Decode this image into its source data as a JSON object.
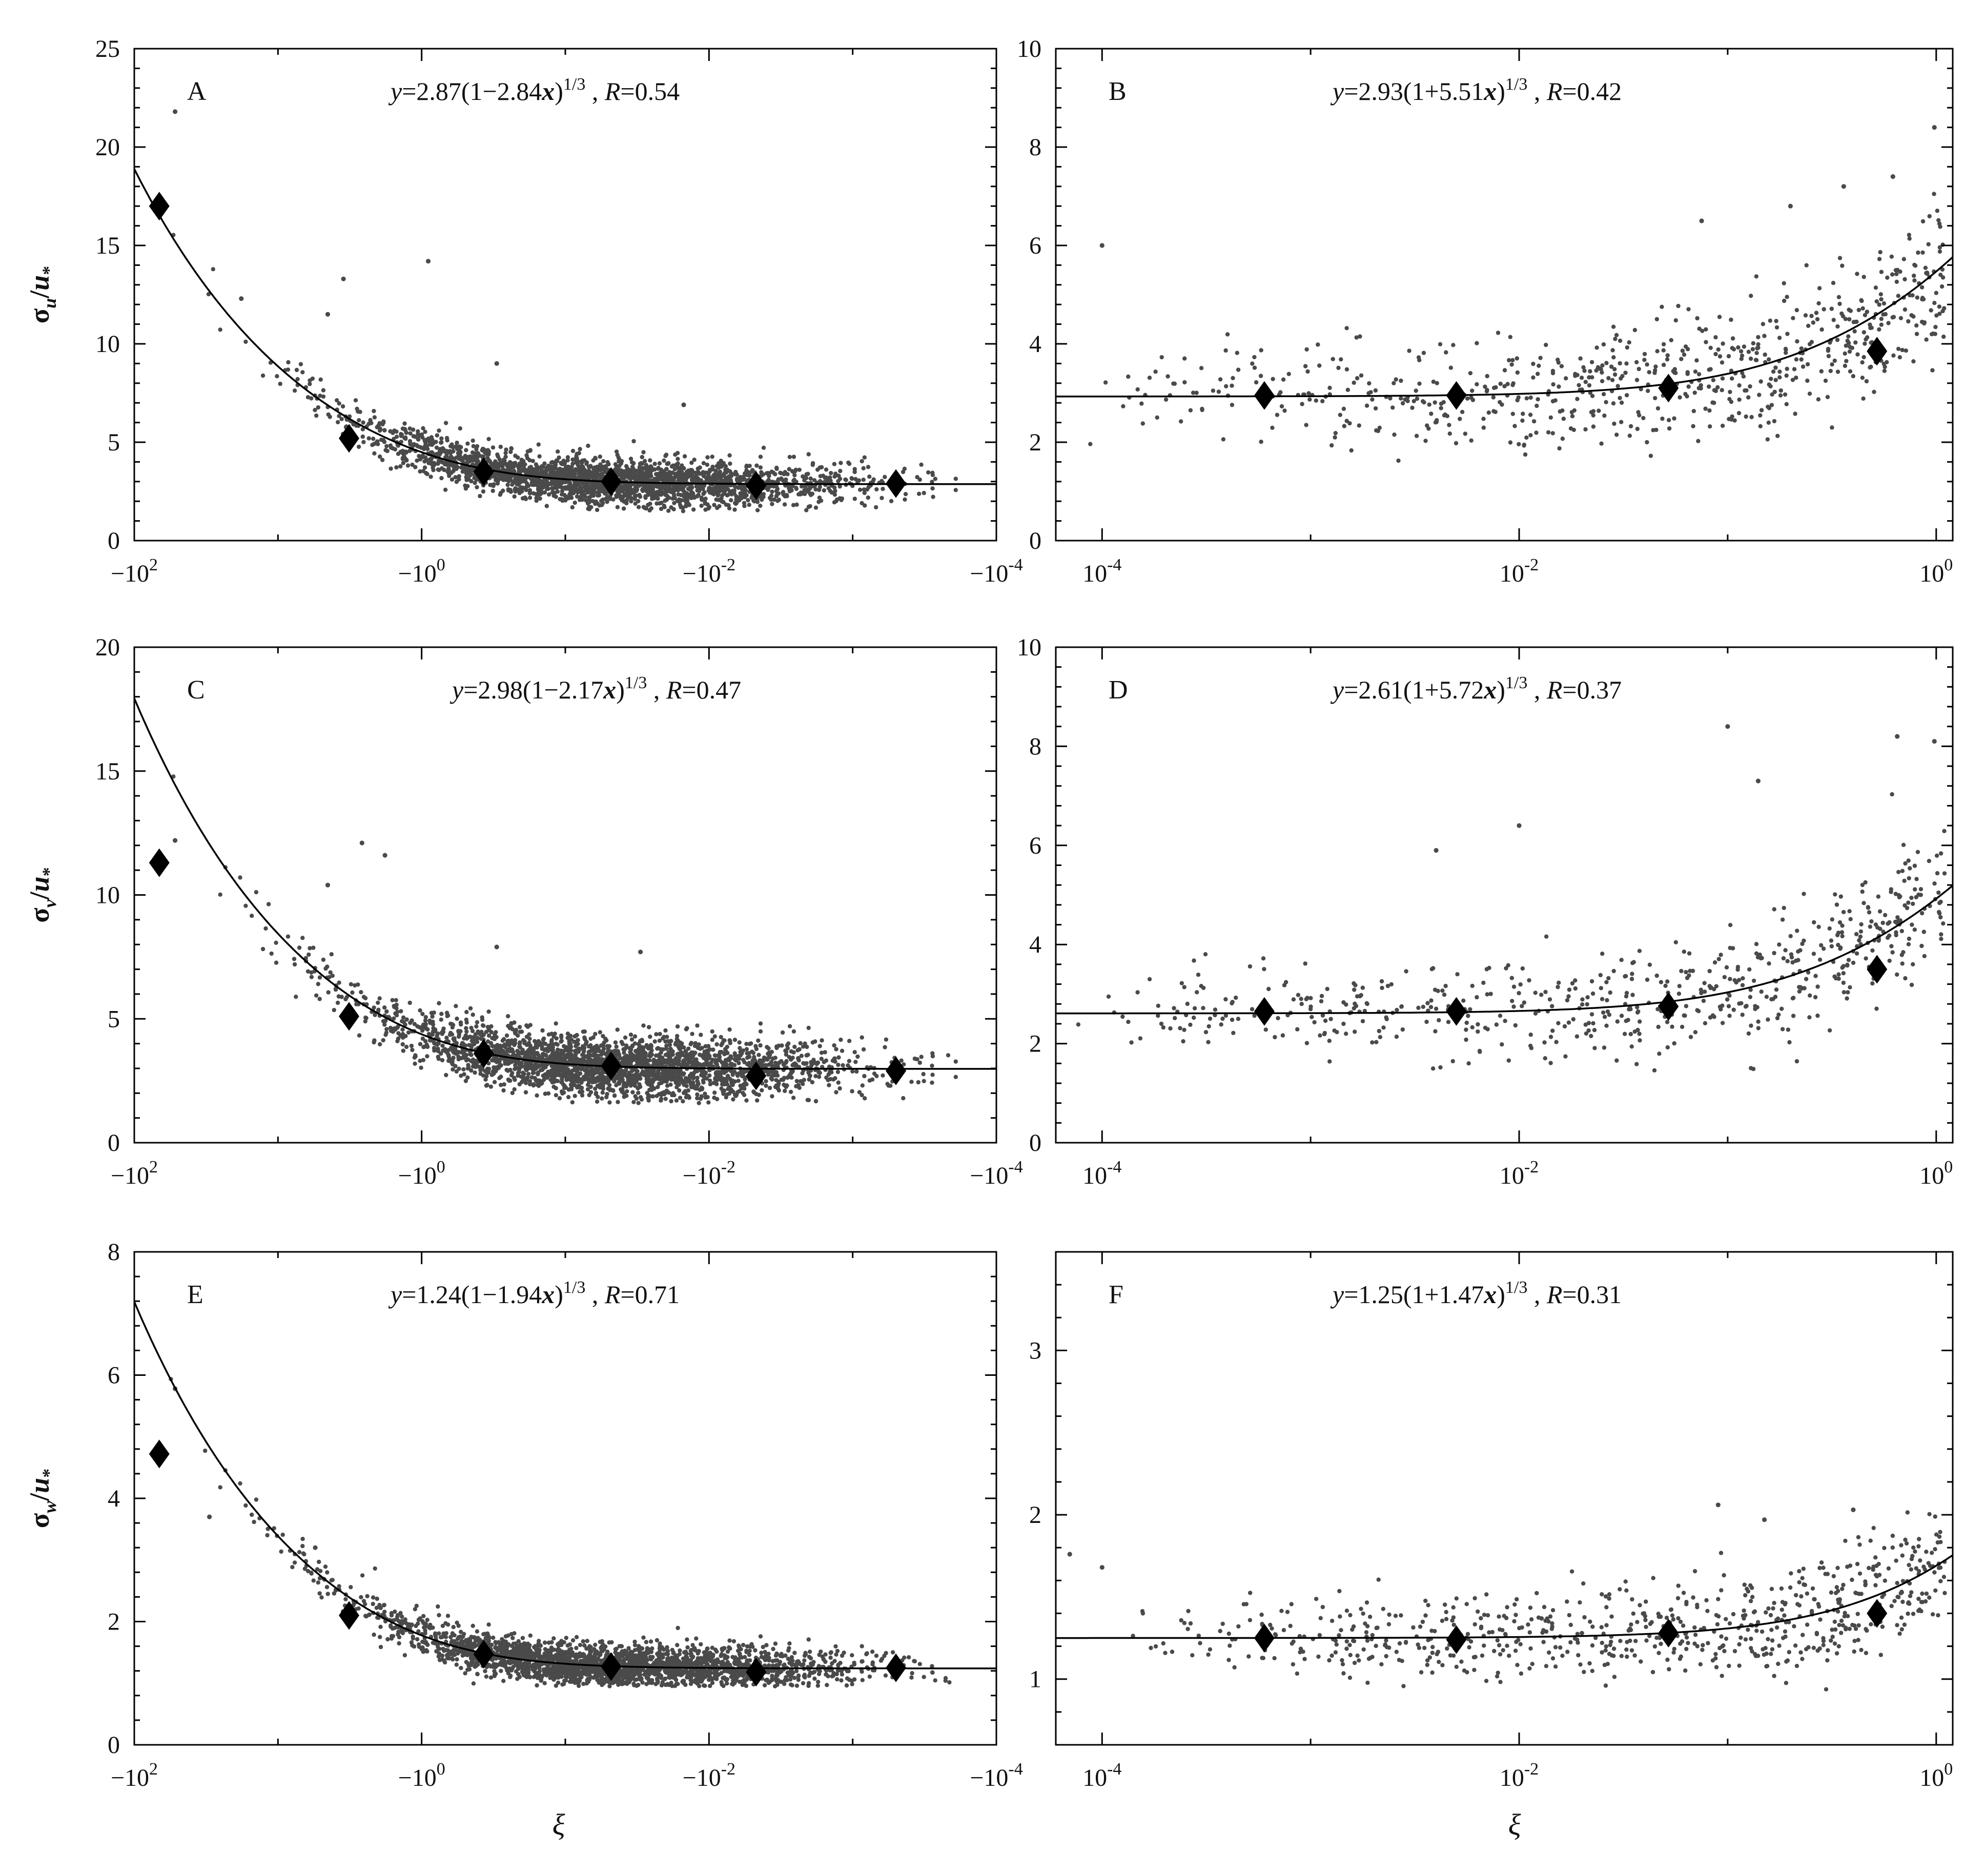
{
  "figure": {
    "ylabels": [
      {
        "sym": "σ",
        "sub": "u",
        "slash": "/",
        "u": "u",
        "star": "*"
      },
      {
        "sym": "σ",
        "sub": "v",
        "slash": "/",
        "u": "u",
        "star": "*"
      },
      {
        "sym": "σ",
        "sub": "w",
        "slash": "/",
        "u": "u",
        "star": "*"
      }
    ],
    "xlabel_left": "ξ",
    "xlabel_right": "ξ"
  },
  "chart_data": [
    {
      "id": "A",
      "type": "scatter",
      "side": "unstable",
      "panel_label": "A",
      "equation": {
        "y": "y",
        "a": "=2.87(1−2.84",
        "x": "x",
        "b": ")",
        "exp": "1/3",
        "c": " , ",
        "R": "R",
        "d": "=0.54"
      },
      "fit": {
        "a": 2.87,
        "b": -2.84
      },
      "xlim": [
        100,
        0.0001
      ],
      "xlog": true,
      "xneg": true,
      "ylim": [
        0,
        25
      ],
      "yticks": [
        0,
        5,
        10,
        15,
        20,
        25
      ],
      "xticks": [
        {
          "v": 100,
          "base": "−10",
          "exp": "2"
        },
        {
          "v": 1,
          "base": "−10",
          "exp": "0"
        },
        {
          "v": 0.01,
          "base": "−10",
          "exp": "-2"
        },
        {
          "v": 0.0001,
          "base": "−10",
          "exp": "-4"
        }
      ],
      "bin_means": [
        [
          -67,
          17.0
        ],
        [
          -3.2,
          5.2
        ],
        [
          -0.37,
          3.5
        ],
        [
          -0.048,
          3.0
        ],
        [
          -0.0047,
          2.8
        ],
        [
          -0.0005,
          2.9
        ]
      ],
      "scatter": {
        "count": 2600,
        "xrange": [
          -80,
          -0.00018
        ],
        "center": -0.05,
        "spread_log": 0.85,
        "sigma": 0.55,
        "clipmin": 1.5
      },
      "outliers": [
        [
          -52,
          21.8
        ],
        [
          -4.5,
          11.5
        ],
        [
          -3.5,
          13.3
        ],
        [
          -0.9,
          14.2
        ],
        [
          -18,
          12.3
        ],
        [
          -0.3,
          9.0
        ],
        [
          -0.015,
          6.9
        ]
      ]
    },
    {
      "id": "B",
      "type": "scatter",
      "side": "stable",
      "panel_label": "B",
      "equation": {
        "y": "y",
        "a": "=2.93(1+5.51",
        "x": "x",
        "b": ")",
        "exp": "1/3",
        "c": " , ",
        "R": "R",
        "d": "=0.42"
      },
      "fit": {
        "a": 2.93,
        "b": 5.51
      },
      "xlim": [
        6e-05,
        1.2
      ],
      "xlog": true,
      "xneg": false,
      "ylim": [
        0,
        10
      ],
      "yticks": [
        0,
        2,
        4,
        6,
        8,
        10
      ],
      "xticks": [
        {
          "v": 0.0001,
          "base": "10",
          "exp": "-4"
        },
        {
          "v": 0.01,
          "base": "10",
          "exp": "-2"
        },
        {
          "v": 1,
          "base": "10",
          "exp": "0"
        }
      ],
      "bin_means": [
        [
          0.0006,
          2.95
        ],
        [
          0.005,
          2.95
        ],
        [
          0.052,
          3.1
        ],
        [
          0.52,
          3.85
        ]
      ],
      "scatter": {
        "count": 720,
        "xrange": [
          7e-05,
          1.1
        ],
        "center": 0.02,
        "spread_log": 1.0,
        "sigma": 0.7,
        "clipmin": 1.2
      },
      "outliers": [
        [
          0.0001,
          6.0
        ],
        [
          0.36,
          7.2
        ],
        [
          0.62,
          7.4
        ],
        [
          0.98,
          8.4
        ],
        [
          0.2,
          6.8
        ],
        [
          0.075,
          6.5
        ]
      ]
    },
    {
      "id": "C",
      "type": "scatter",
      "side": "unstable",
      "panel_label": "C",
      "equation": {
        "y": "y",
        "a": "=2.98(1−2.17",
        "x": "x",
        "b": ")",
        "exp": "1/3",
        "c": " , ",
        "R": "R",
        "d": "=0.47"
      },
      "fit": {
        "a": 2.98,
        "b": -2.17
      },
      "xlim": [
        100,
        0.0001
      ],
      "xlog": true,
      "xneg": true,
      "ylim": [
        0,
        20
      ],
      "yticks": [
        0,
        5,
        10,
        15,
        20
      ],
      "xticks": [
        {
          "v": 100,
          "base": "−10",
          "exp": "2"
        },
        {
          "v": 1,
          "base": "−10",
          "exp": "0"
        },
        {
          "v": 0.01,
          "base": "−10",
          "exp": "-2"
        },
        {
          "v": 0.0001,
          "base": "−10",
          "exp": "-4"
        }
      ],
      "bin_means": [
        [
          -67,
          11.3
        ],
        [
          -3.2,
          5.1
        ],
        [
          -0.37,
          3.6
        ],
        [
          -0.048,
          3.1
        ],
        [
          -0.0047,
          2.7
        ],
        [
          -0.0005,
          2.9
        ]
      ],
      "scatter": {
        "count": 2600,
        "xrange": [
          -80,
          -0.00018
        ],
        "center": -0.05,
        "spread_log": 0.85,
        "sigma": 0.6,
        "clipmin": 1.6
      },
      "outliers": [
        [
          -52,
          12.2
        ],
        [
          -4.5,
          10.4
        ],
        [
          -2.6,
          12.1
        ],
        [
          -1.8,
          11.6
        ],
        [
          -0.3,
          7.9
        ],
        [
          -0.03,
          7.7
        ]
      ]
    },
    {
      "id": "D",
      "type": "scatter",
      "side": "stable",
      "panel_label": "D",
      "equation": {
        "y": "y",
        "a": "=2.61(1+5.72",
        "x": "x",
        "b": ")",
        "exp": "1/3",
        "c": " , ",
        "R": "R",
        "d": "=0.37"
      },
      "fit": {
        "a": 2.61,
        "b": 5.72
      },
      "xlim": [
        6e-05,
        1.2
      ],
      "xlog": true,
      "xneg": false,
      "ylim": [
        0,
        10
      ],
      "yticks": [
        0,
        2,
        4,
        6,
        8,
        10
      ],
      "xticks": [
        {
          "v": 0.0001,
          "base": "10",
          "exp": "-4"
        },
        {
          "v": 0.01,
          "base": "10",
          "exp": "-2"
        },
        {
          "v": 1,
          "base": "10",
          "exp": "0"
        }
      ],
      "bin_means": [
        [
          0.0006,
          2.65
        ],
        [
          0.005,
          2.65
        ],
        [
          0.052,
          2.75
        ],
        [
          0.52,
          3.5
        ]
      ],
      "scatter": {
        "count": 620,
        "xrange": [
          7e-05,
          1.1
        ],
        "center": 0.02,
        "spread_log": 1.0,
        "sigma": 0.65,
        "clipmin": 1.4
      },
      "outliers": [
        [
          0.1,
          8.4
        ],
        [
          0.65,
          8.2
        ],
        [
          0.98,
          8.1
        ],
        [
          0.01,
          6.4
        ],
        [
          0.14,
          7.3
        ],
        [
          0.004,
          5.9
        ]
      ]
    },
    {
      "id": "E",
      "type": "scatter",
      "side": "unstable",
      "panel_label": "E",
      "equation": {
        "y": "y",
        "a": "=1.24(1−1.94",
        "x": "x",
        "b": ")",
        "exp": "1/3",
        "c": " , ",
        "R": "R",
        "d": "=0.71"
      },
      "fit": {
        "a": 1.24,
        "b": -1.94
      },
      "xlim": [
        100,
        0.0001
      ],
      "xlog": true,
      "xneg": true,
      "ylim": [
        0,
        8
      ],
      "yticks": [
        0,
        2,
        4,
        6,
        8
      ],
      "xticks": [
        {
          "v": 100,
          "base": "−10",
          "exp": "2"
        },
        {
          "v": 1,
          "base": "−10",
          "exp": "0"
        },
        {
          "v": 0.01,
          "base": "−10",
          "exp": "-2"
        },
        {
          "v": 0.0001,
          "base": "−10",
          "exp": "-4"
        }
      ],
      "bin_means": [
        [
          -67,
          4.72
        ],
        [
          -3.2,
          2.1
        ],
        [
          -0.37,
          1.47
        ],
        [
          -0.048,
          1.27
        ],
        [
          -0.0047,
          1.18
        ],
        [
          -0.0005,
          1.25
        ]
      ],
      "scatter": {
        "count": 2600,
        "xrange": [
          -80,
          -0.00018
        ],
        "center": -0.05,
        "spread_log": 0.85,
        "sigma": 0.17,
        "clipmin": 0.95
      },
      "outliers": [
        [
          -52,
          5.78
        ],
        [
          -30,
          3.7
        ],
        [
          -5.5,
          3.2
        ]
      ]
    },
    {
      "id": "F",
      "type": "scatter",
      "side": "stable",
      "panel_label": "F",
      "equation": {
        "y": "y",
        "a": "=1.25(1+1.47",
        "x": "x",
        "b": ")",
        "exp": "1/3",
        "c": " , ",
        "R": "R",
        "d": "=0.31"
      },
      "fit": {
        "a": 1.25,
        "b": 1.47
      },
      "xlim": [
        6e-05,
        1.2
      ],
      "xlog": true,
      "xneg": false,
      "ylim": [
        0.6,
        3.6
      ],
      "yticks": [
        1,
        2,
        3
      ],
      "xticks": [
        {
          "v": 0.0001,
          "base": "10",
          "exp": "-4"
        },
        {
          "v": 0.01,
          "base": "10",
          "exp": "-2"
        },
        {
          "v": 1,
          "base": "10",
          "exp": "0"
        }
      ],
      "bin_means": [
        [
          0.0006,
          1.25
        ],
        [
          0.005,
          1.24
        ],
        [
          0.052,
          1.28
        ],
        [
          0.52,
          1.4
        ]
      ],
      "scatter": {
        "count": 720,
        "xrange": [
          7e-05,
          1.1
        ],
        "center": 0.02,
        "spread_log": 1.0,
        "sigma": 0.17,
        "clipmin": 0.92
      },
      "outliers": [
        [
          0.09,
          2.06
        ],
        [
          0.4,
          2.03
        ],
        [
          0.15,
          1.97
        ],
        [
          0.0001,
          1.68
        ],
        [
          7e-05,
          1.76
        ]
      ]
    }
  ]
}
